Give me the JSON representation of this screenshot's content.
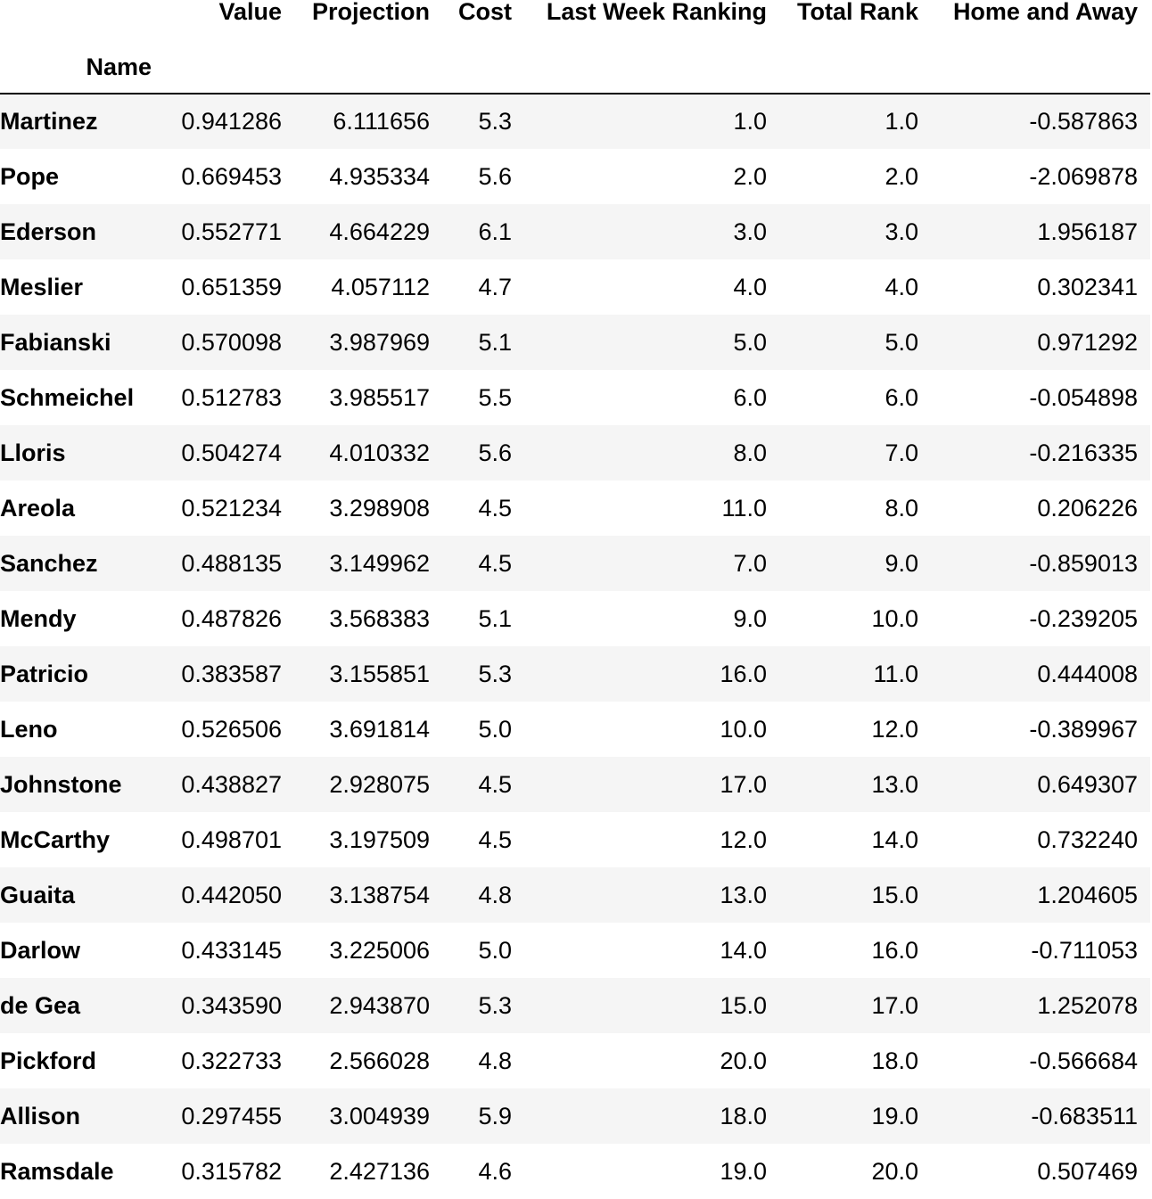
{
  "table": {
    "columns": [
      "Value",
      "Projection",
      "Cost",
      "Last Week Ranking",
      "Total Rank",
      "Home and Away"
    ],
    "index_name": "Name",
    "rows": [
      {
        "name": "Martinez",
        "values": [
          "0.941286",
          "6.111656",
          "5.3",
          "1.0",
          "1.0",
          "-0.587863"
        ]
      },
      {
        "name": "Pope",
        "values": [
          "0.669453",
          "4.935334",
          "5.6",
          "2.0",
          "2.0",
          "-2.069878"
        ]
      },
      {
        "name": "Ederson",
        "values": [
          "0.552771",
          "4.664229",
          "6.1",
          "3.0",
          "3.0",
          "1.956187"
        ]
      },
      {
        "name": "Meslier",
        "values": [
          "0.651359",
          "4.057112",
          "4.7",
          "4.0",
          "4.0",
          "0.302341"
        ]
      },
      {
        "name": "Fabianski",
        "values": [
          "0.570098",
          "3.987969",
          "5.1",
          "5.0",
          "5.0",
          "0.971292"
        ]
      },
      {
        "name": "Schmeichel",
        "values": [
          "0.512783",
          "3.985517",
          "5.5",
          "6.0",
          "6.0",
          "-0.054898"
        ]
      },
      {
        "name": "Lloris",
        "values": [
          "0.504274",
          "4.010332",
          "5.6",
          "8.0",
          "7.0",
          "-0.216335"
        ]
      },
      {
        "name": "Areola",
        "values": [
          "0.521234",
          "3.298908",
          "4.5",
          "11.0",
          "8.0",
          "0.206226"
        ]
      },
      {
        "name": "Sanchez",
        "values": [
          "0.488135",
          "3.149962",
          "4.5",
          "7.0",
          "9.0",
          "-0.859013"
        ]
      },
      {
        "name": "Mendy",
        "values": [
          "0.487826",
          "3.568383",
          "5.1",
          "9.0",
          "10.0",
          "-0.239205"
        ]
      },
      {
        "name": "Patricio",
        "values": [
          "0.383587",
          "3.155851",
          "5.3",
          "16.0",
          "11.0",
          "0.444008"
        ]
      },
      {
        "name": "Leno",
        "values": [
          "0.526506",
          "3.691814",
          "5.0",
          "10.0",
          "12.0",
          "-0.389967"
        ]
      },
      {
        "name": "Johnstone",
        "values": [
          "0.438827",
          "2.928075",
          "4.5",
          "17.0",
          "13.0",
          "0.649307"
        ]
      },
      {
        "name": "McCarthy",
        "values": [
          "0.498701",
          "3.197509",
          "4.5",
          "12.0",
          "14.0",
          "0.732240"
        ]
      },
      {
        "name": "Guaita",
        "values": [
          "0.442050",
          "3.138754",
          "4.8",
          "13.0",
          "15.0",
          "1.204605"
        ]
      },
      {
        "name": "Darlow",
        "values": [
          "0.433145",
          "3.225006",
          "5.0",
          "14.0",
          "16.0",
          "-0.711053"
        ]
      },
      {
        "name": "de Gea",
        "values": [
          "0.343590",
          "2.943870",
          "5.3",
          "15.0",
          "17.0",
          "1.252078"
        ]
      },
      {
        "name": "Pickford",
        "values": [
          "0.322733",
          "2.566028",
          "4.8",
          "20.0",
          "18.0",
          "-0.566684"
        ]
      },
      {
        "name": "Allison",
        "values": [
          "0.297455",
          "3.004939",
          "5.9",
          "18.0",
          "19.0",
          "-0.683511"
        ]
      },
      {
        "name": "Ramsdale",
        "values": [
          "0.315782",
          "2.427136",
          "4.6",
          "19.0",
          "20.0",
          "0.507469"
        ]
      }
    ]
  }
}
